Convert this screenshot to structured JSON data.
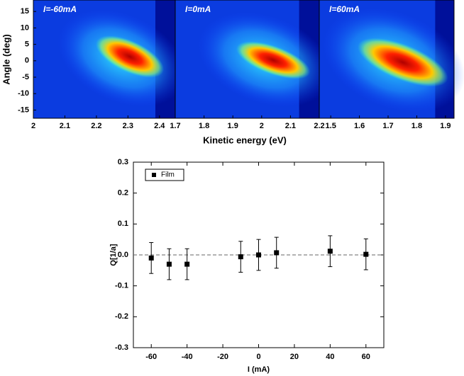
{
  "chart_data": [
    {
      "type": "heatmap",
      "label": "I=-60mA",
      "ylabel": "Angle (deg)",
      "xlim": [
        2,
        2.45
      ],
      "xticks": [
        2,
        2.1,
        2.2,
        2.3,
        2.4
      ],
      "ylim": [
        -17.5,
        18.5
      ],
      "yticks": [
        15,
        10,
        5,
        0,
        -5,
        -10,
        -15
      ]
    },
    {
      "type": "heatmap",
      "label": "I=0mA",
      "xlabel": "Kinetic energy (eV)",
      "xlim": [
        1.7,
        2.2
      ],
      "xticks": [
        1.7,
        1.8,
        1.9,
        2,
        2.1,
        2.2
      ],
      "ylim": [
        -17.5,
        18.5
      ]
    },
    {
      "type": "heatmap",
      "label": "I=60mA",
      "xlim": [
        1.46,
        1.93
      ],
      "xticks": [
        1.5,
        1.6,
        1.7,
        1.8,
        1.9
      ],
      "ylim": [
        -17.5,
        18.5
      ]
    },
    {
      "type": "scatter",
      "xlabel": "I (mA)",
      "ylabel": "Q[1/a]",
      "legend": "upper left",
      "xlim": [
        -70,
        70
      ],
      "xticks": [
        -60,
        -40,
        -20,
        0,
        20,
        40,
        60
      ],
      "ylim": [
        -0.3,
        0.3
      ],
      "yticks": [
        0.3,
        0.2,
        0.1,
        {
          "value": 0,
          "label": "0.0"
        },
        -0.1,
        -0.2,
        -0.3
      ],
      "hline": 0,
      "series": [
        {
          "name": "Film",
          "color": "#000000",
          "x": [
            -60,
            -50,
            -40,
            -10,
            0,
            10,
            40,
            60
          ],
          "values": [
            -0.01,
            -0.03,
            -0.03,
            -0.006,
            0,
            0.007,
            0.012,
            0.002
          ],
          "errors": [
            0.05,
            0.05,
            0.05,
            0.05,
            0.05,
            0.05,
            0.05,
            0.05
          ]
        }
      ]
    }
  ]
}
